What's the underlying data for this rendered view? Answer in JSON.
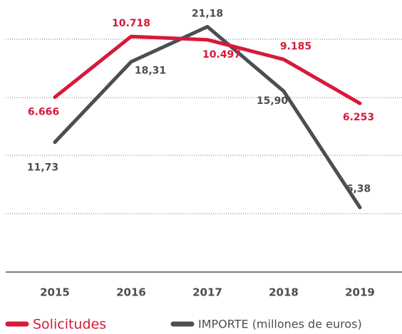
{
  "chart_data": {
    "type": "line",
    "categories": [
      "2015",
      "2016",
      "2017",
      "2018",
      "2019"
    ],
    "series": [
      {
        "name": "Solicitudes",
        "color": "#d7193a",
        "values": [
          6666,
          10718,
          10497,
          9185,
          6253
        ],
        "value_labels": [
          "6.666",
          "10.718",
          "10.497",
          "9.185",
          "6.253"
        ]
      },
      {
        "name": "IMPORTE (millones de euros)",
        "color": "#4a4f54",
        "axis": "y2",
        "values": [
          11.73,
          18.31,
          21.18,
          15.9,
          6.38
        ],
        "value_labels": [
          "11,73",
          "18,31",
          "21,18",
          "15,90",
          "6,38"
        ]
      }
    ],
    "ylim": [
      -5000,
      12200
    ],
    "y2lim": [
      1.1,
      22.2
    ]
  }
}
